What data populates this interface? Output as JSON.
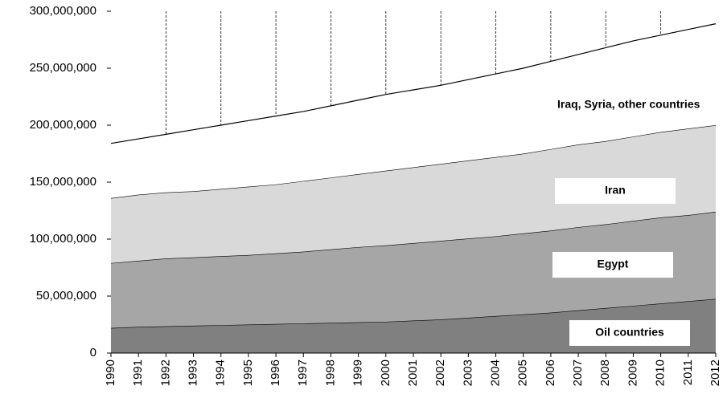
{
  "chart_data": {
    "type": "stacked-area",
    "categories": [
      "1990",
      "1991",
      "1992",
      "1993",
      "1994",
      "1995",
      "1996",
      "1997",
      "1998",
      "1999",
      "2000",
      "2001",
      "2002",
      "2003",
      "2004",
      "2005",
      "2006",
      "2007",
      "2008",
      "2009",
      "2010",
      "2011",
      "2012"
    ],
    "series": [
      {
        "name": "Oil countries",
        "color": "#808080",
        "values": [
          22000000,
          23000000,
          23500000,
          24000000,
          24500000,
          25000000,
          25500000,
          26000000,
          26500000,
          27000000,
          27500000,
          28500000,
          29500000,
          31000000,
          32500000,
          34000000,
          35500000,
          37500000,
          39500000,
          41500000,
          43500000,
          45500000,
          47500000
        ]
      },
      {
        "name": "Egypt",
        "color": "#a6a6a6",
        "values": [
          57000000,
          58000000,
          59500000,
          60000000,
          60500000,
          61000000,
          62000000,
          63000000,
          64500000,
          66000000,
          67000000,
          68000000,
          69000000,
          69500000,
          70000000,
          71000000,
          72000000,
          73000000,
          73500000,
          74500000,
          75500000,
          75500000,
          76500000
        ]
      },
      {
        "name": "Iran",
        "color": "#d9d9d9",
        "values": [
          57000000,
          58000000,
          58000000,
          58000000,
          59000000,
          60000000,
          60500000,
          62000000,
          63000000,
          64000000,
          65500000,
          66500000,
          67500000,
          68500000,
          69500000,
          70000000,
          71500000,
          72500000,
          73000000,
          74000000,
          75000000,
          76000000,
          76000000
        ]
      },
      {
        "name": "Iraq, Syria, other countries",
        "color": "#ffffff",
        "values": [
          48000000,
          49000000,
          51000000,
          54000000,
          56000000,
          58000000,
          60000000,
          61000000,
          63000000,
          65000000,
          67000000,
          68000000,
          69000000,
          71000000,
          73000000,
          75000000,
          77000000,
          79000000,
          82000000,
          84000000,
          85000000,
          87000000,
          89000000
        ]
      }
    ],
    "ylim": [
      0,
      300000000
    ],
    "yticks": [
      0,
      {
        "value": 50000000,
        "label": "50,000,000"
      },
      {
        "value": 100000000,
        "label": "100,000,000"
      },
      {
        "value": 150000000,
        "label": "150,000,000"
      },
      {
        "value": 200000000,
        "label": "200,000,000"
      },
      {
        "value": 250000000,
        "label": "250,000,000"
      },
      {
        "value": 300000000,
        "label": "300,000,000"
      }
    ]
  }
}
